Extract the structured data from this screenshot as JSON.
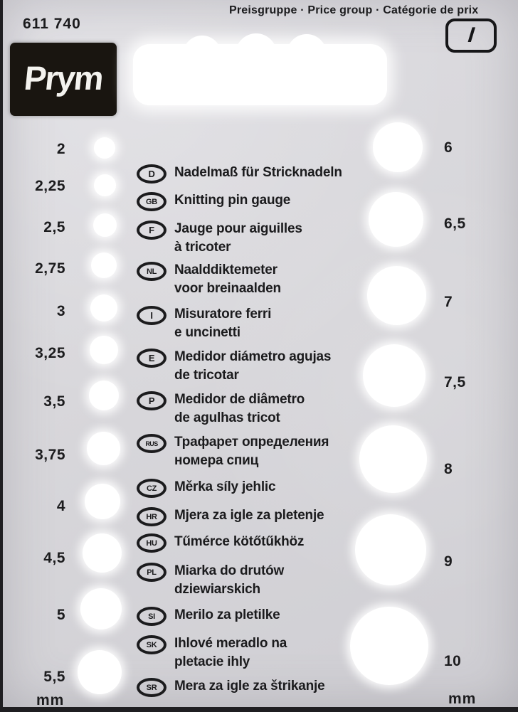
{
  "header": {
    "article_number": "611 740",
    "price_group_label": "Preisgruppe · Price group · Catégorie de prix",
    "price_group_value": "I"
  },
  "brand": {
    "name": "Prym"
  },
  "gauge": {
    "left": {
      "sizes": [
        "2",
        "2,25",
        "2,5",
        "2,75",
        "3",
        "3,25",
        "3,5",
        "3,75",
        "4",
        "4,5",
        "5",
        "5,5"
      ],
      "unit": "mm"
    },
    "right": {
      "sizes": [
        "6",
        "6,5",
        "7",
        "7,5",
        "8",
        "9",
        "10"
      ],
      "unit": "mm"
    }
  },
  "languages": [
    {
      "code": "D",
      "lines": [
        "Nadelmaß für Stricknadeln"
      ]
    },
    {
      "code": "GB",
      "lines": [
        "Knitting pin gauge"
      ]
    },
    {
      "code": "F",
      "lines": [
        "Jauge pour aiguilles",
        "à tricoter"
      ]
    },
    {
      "code": "NL",
      "lines": [
        "Naalddiktemeter",
        "voor breinaalden"
      ]
    },
    {
      "code": "I",
      "lines": [
        "Misuratore ferri",
        "e uncinetti"
      ]
    },
    {
      "code": "E",
      "lines": [
        "Medidor diámetro agujas",
        "de tricotar"
      ]
    },
    {
      "code": "P",
      "lines": [
        "Medidor de diâmetro",
        "de agulhas tricot"
      ]
    },
    {
      "code": "RUS",
      "lines": [
        "Трафарет определения",
        "номера спиц"
      ]
    },
    {
      "code": "CZ",
      "lines": [
        "Měrka síly jehlic"
      ]
    },
    {
      "code": "HR",
      "lines": [
        "Mjera za igle za pletenje"
      ]
    },
    {
      "code": "HU",
      "lines": [
        "Tűmérce kötőtűkhöz"
      ]
    },
    {
      "code": "PL",
      "lines": [
        "Miarka do drutów",
        "dziewiarskich"
      ]
    },
    {
      "code": "SI",
      "lines": [
        "Merilo za pletilke"
      ]
    },
    {
      "code": "SK",
      "lines": [
        "Ihlové meradlo na",
        "pletacie ihly"
      ]
    },
    {
      "code": "SR",
      "lines": [
        "Mera za igle za štrikanje"
      ]
    }
  ],
  "colors": {
    "card_background": "#d8d7db",
    "text": "#1b1b1d",
    "hole": "#ffffff",
    "logo_background": "#191510",
    "logo_text": "#f4f3ef"
  }
}
